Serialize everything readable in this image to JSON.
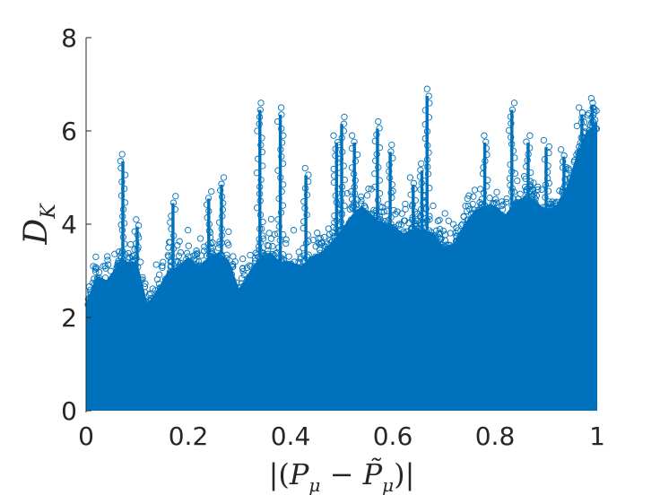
{
  "chart_data": {
    "type": "scatter",
    "title": "",
    "xlabel": "|(P_μ − P̃_μ)|",
    "ylabel": "D_K",
    "xlim": [
      0,
      1
    ],
    "ylim": [
      0,
      8
    ],
    "x_ticks": [
      0,
      0.2,
      0.4,
      0.6,
      0.8,
      1
    ],
    "x_tick_labels": [
      "0",
      "0.2",
      "0.4",
      "0.6",
      "0.8",
      "1"
    ],
    "y_ticks": [
      0,
      2,
      4,
      6,
      8
    ],
    "y_tick_labels": [
      "0",
      "2",
      "4",
      "6",
      "8"
    ],
    "marker": "open-circle",
    "grid": false,
    "legend": "none",
    "colors": {
      "series": "#0072BD",
      "axis": "#262626",
      "background": "#ffffff"
    },
    "series": [
      {
        "points_description": "dense cloud of points filling y from 0 up to an upper envelope that rises with x",
        "envelope": {
          "x": [
            0,
            0.02,
            0.04,
            0.06,
            0.07,
            0.08,
            0.1,
            0.12,
            0.14,
            0.16,
            0.18,
            0.2,
            0.22,
            0.24,
            0.26,
            0.28,
            0.3,
            0.32,
            0.34,
            0.36,
            0.38,
            0.4,
            0.42,
            0.44,
            0.46,
            0.48,
            0.5,
            0.52,
            0.54,
            0.56,
            0.58,
            0.6,
            0.62,
            0.64,
            0.66,
            0.68,
            0.7,
            0.72,
            0.74,
            0.76,
            0.78,
            0.8,
            0.82,
            0.84,
            0.86,
            0.88,
            0.9,
            0.92,
            0.94,
            0.96,
            0.98,
            1.0
          ],
          "y": [
            2.3,
            2.9,
            2.8,
            3.1,
            3.3,
            3.2,
            3.2,
            2.3,
            2.6,
            3.0,
            3.1,
            3.3,
            3.1,
            3.3,
            3.4,
            3.2,
            2.6,
            3.0,
            3.3,
            3.4,
            3.2,
            3.2,
            3.1,
            3.3,
            3.4,
            3.6,
            3.9,
            4.2,
            4.4,
            4.2,
            4.0,
            4.0,
            3.8,
            3.9,
            3.9,
            3.8,
            3.5,
            3.6,
            4.0,
            4.3,
            4.4,
            4.4,
            4.2,
            4.5,
            4.6,
            4.5,
            4.3,
            4.4,
            4.8,
            5.5,
            6.0,
            6.2
          ]
        },
        "spikes": [
          {
            "x": 0.072,
            "y": 5.5
          },
          {
            "x": 0.1,
            "y": 4.1
          },
          {
            "x": 0.17,
            "y": 4.6
          },
          {
            "x": 0.24,
            "y": 4.7
          },
          {
            "x": 0.265,
            "y": 5.0
          },
          {
            "x": 0.34,
            "y": 6.6
          },
          {
            "x": 0.38,
            "y": 6.5
          },
          {
            "x": 0.43,
            "y": 5.2
          },
          {
            "x": 0.49,
            "y": 5.9
          },
          {
            "x": 0.5,
            "y": 6.3
          },
          {
            "x": 0.525,
            "y": 5.9
          },
          {
            "x": 0.57,
            "y": 6.2
          },
          {
            "x": 0.595,
            "y": 5.7
          },
          {
            "x": 0.64,
            "y": 5.0
          },
          {
            "x": 0.657,
            "y": 5.3
          },
          {
            "x": 0.667,
            "y": 6.9
          },
          {
            "x": 0.78,
            "y": 5.9
          },
          {
            "x": 0.833,
            "y": 6.6
          },
          {
            "x": 0.865,
            "y": 5.9
          },
          {
            "x": 0.9,
            "y": 5.8
          },
          {
            "x": 0.935,
            "y": 5.6
          },
          {
            "x": 0.97,
            "y": 6.5
          },
          {
            "x": 0.99,
            "y": 6.7
          }
        ]
      }
    ]
  }
}
